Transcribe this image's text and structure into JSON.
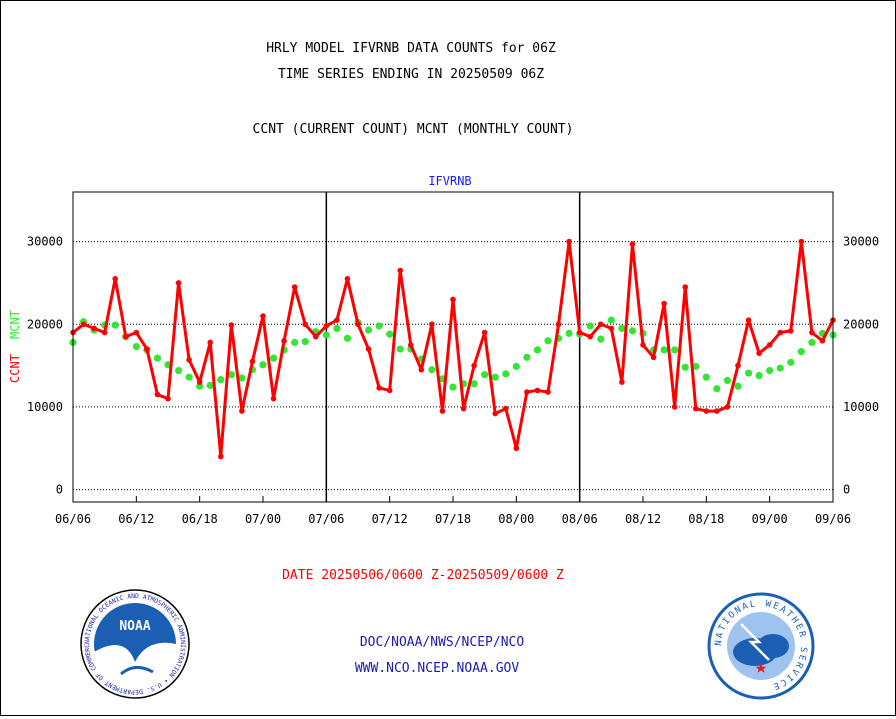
{
  "titles": {
    "line1": "HRLY MODEL IFVRNB DATA COUNTS for 06Z",
    "line2": "TIME SERIES ENDING IN 20250509 06Z",
    "line3": "CCNT (CURRENT COUNT) MCNT (MONTHLY COUNT)"
  },
  "axis_labels": {
    "ccnt": "CCNT",
    "mcnt": "MCNT"
  },
  "date_range": "DATE 20250506/0600 Z-20250509/0600 Z",
  "footer": {
    "line1": "DOC/NOAA/NWS/NCEP/NCO",
    "line2": "WWW.NCO.NCEP.NOAA.GOV"
  },
  "logos": {
    "noaa": {
      "name": "NOAA",
      "ring": "NATIONAL OCEANIC AND ATMOSPHERIC ADMINISTRATION • U.S. DEPARTMENT OF COMMERCE •"
    },
    "nws": {
      "ring": "NATIONAL WEATHER SERVICE"
    }
  },
  "colors": {
    "ccnt": "#ff0000",
    "mcnt": "#33e633",
    "series_label": "#1a1aff"
  },
  "chart_data": {
    "type": "line",
    "series_label": "IFVRNB",
    "x_ticks": [
      "06/06",
      "06/12",
      "06/18",
      "07/00",
      "07/06",
      "07/12",
      "07/18",
      "08/00",
      "08/06",
      "08/12",
      "08/18",
      "09/00",
      "09/06"
    ],
    "x_range_hours": [
      0,
      72
    ],
    "ylim": [
      -1500,
      36000
    ],
    "y_ticks": [
      0,
      10000,
      20000,
      30000
    ],
    "grid": true,
    "series": [
      {
        "name": "CCNT",
        "values": [
          19000,
          20000,
          19500,
          19000,
          25500,
          18500,
          19000,
          17000,
          11500,
          11000,
          25000,
          15700,
          13000,
          17800,
          4000,
          19900,
          9500,
          15500,
          21000,
          11000,
          18000,
          24500,
          20000,
          18500,
          19800,
          20500,
          25500,
          20000,
          17000,
          12300,
          12000,
          26500,
          17500,
          14500,
          20000,
          9500,
          23000,
          9800,
          15000,
          19000,
          9200,
          9800,
          5000,
          11800,
          12000,
          11800,
          20000,
          30000,
          19000,
          18500,
          20000,
          19500,
          13000,
          29700,
          17500,
          16000,
          22500,
          10000,
          24500,
          9800,
          9500,
          9500,
          10000,
          15000,
          20500,
          16500,
          17500,
          19000,
          19200,
          30000,
          19000,
          18000,
          20500
        ]
      },
      {
        "name": "MCNT",
        "values": [
          17800,
          20300,
          19300,
          19900,
          19900,
          18500,
          17300,
          16900,
          15900,
          15100,
          14400,
          13600,
          12500,
          12600,
          13300,
          13900,
          13500,
          14500,
          15100,
          15900,
          16900,
          17800,
          17900,
          19100,
          18700,
          19500,
          18300,
          20200,
          19300,
          19800,
          18800,
          17000,
          17000,
          15800,
          14500,
          13400,
          12400,
          12800,
          12800,
          13900,
          13600,
          14000,
          14900,
          16000,
          16900,
          18000,
          18300,
          18900,
          18800,
          19800,
          18200,
          20500,
          19500,
          19200,
          18900,
          16900,
          16900,
          16900,
          14800,
          14900,
          13600,
          12200,
          13200,
          12500,
          14100,
          13800,
          14400,
          14700,
          15400,
          16700,
          17800,
          18900,
          18700
        ]
      }
    ]
  }
}
